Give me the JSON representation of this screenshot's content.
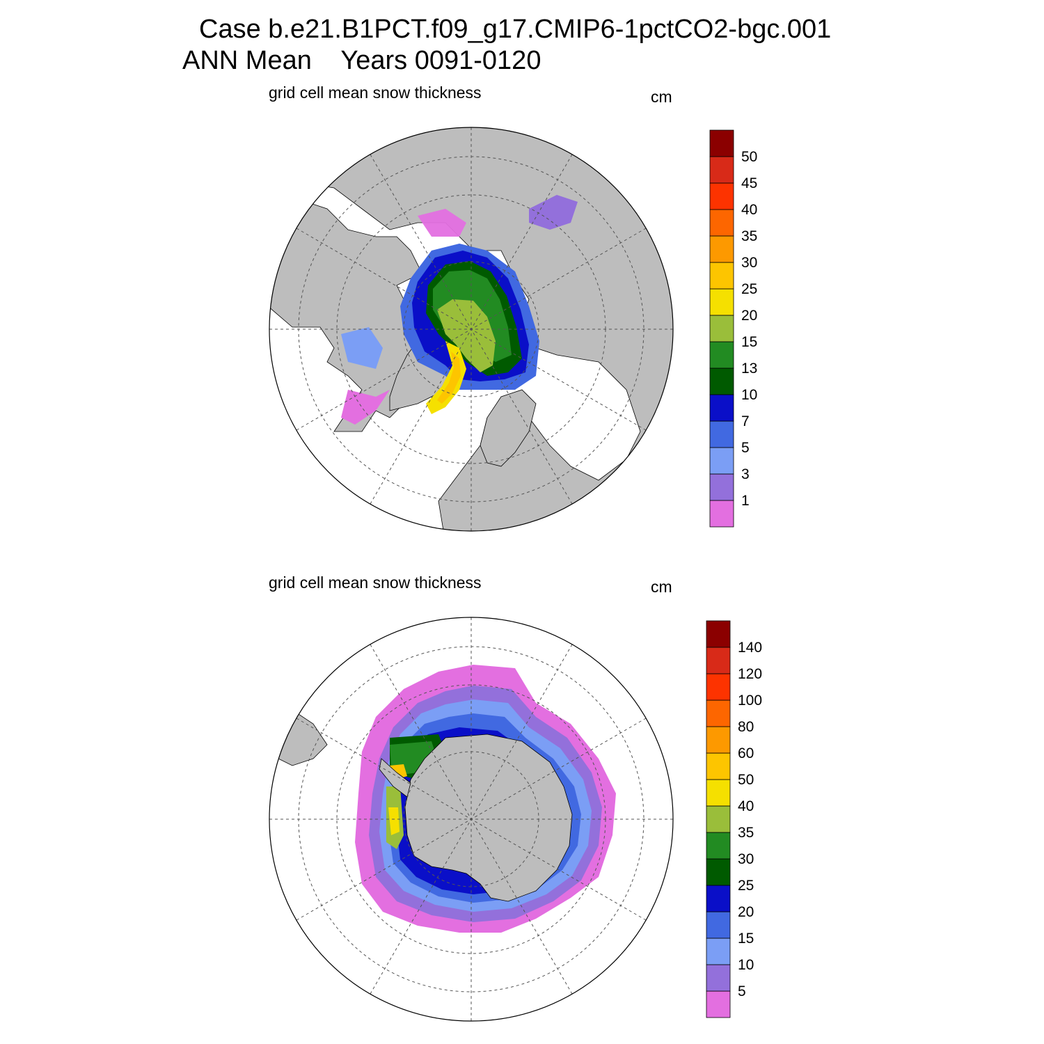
{
  "title": {
    "line1": "Case b.e21.B1PCT.f09_g17.CMIP6-1pctCO2-bgc.001",
    "line2": "ANN Mean    Years 0091-0120"
  },
  "colors": {
    "land": "#bdbdbd",
    "scale": [
      "#e36fe0",
      "#9370db",
      "#7b9ef5",
      "#4169e1",
      "#0a0fc8",
      "#005a00",
      "#228b22",
      "#9abe3a",
      "#f5e000",
      "#fdc500",
      "#fd9900",
      "#fd6600",
      "#fd3300",
      "#d82a18",
      "#8b0000"
    ]
  },
  "panels": [
    {
      "id": "north",
      "hemisphere": "Arctic",
      "label": "grid cell mean snow thickness",
      "units": "cm",
      "colorbar_levels": [
        "1",
        "3",
        "5",
        "7",
        "10",
        "13",
        "15",
        "20",
        "25",
        "30",
        "35",
        "40",
        "45",
        "50"
      ]
    },
    {
      "id": "south",
      "hemisphere": "Antarctic",
      "label": "grid cell mean snow thickness",
      "units": "cm",
      "colorbar_levels": [
        "5",
        "10",
        "15",
        "20",
        "25",
        "30",
        "35",
        "40",
        "50",
        "60",
        "80",
        "100",
        "120",
        "140"
      ]
    }
  ]
}
